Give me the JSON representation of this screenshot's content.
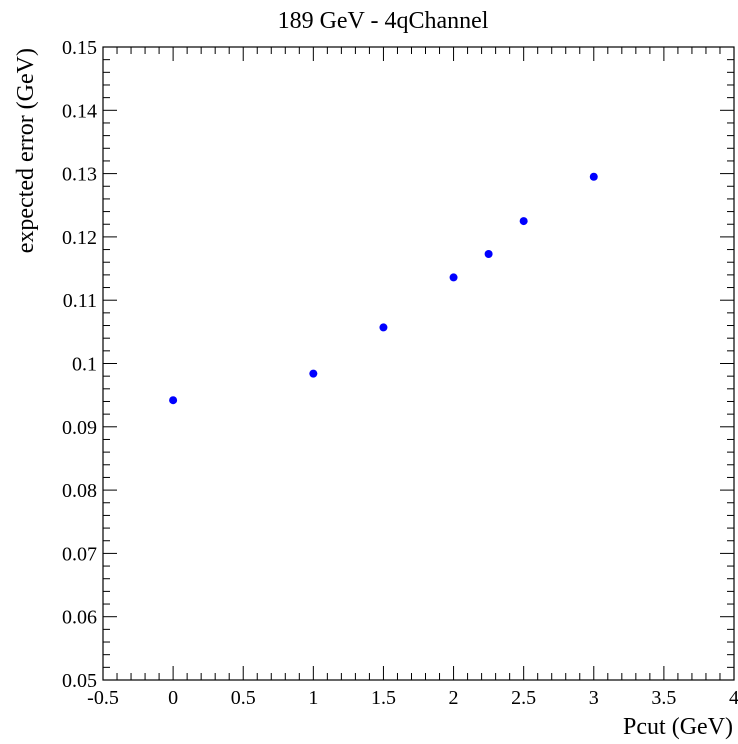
{
  "chart_data": {
    "type": "scatter",
    "title": "189 GeV - 4qChannel",
    "xlabel": "Pcut (GeV)",
    "ylabel": "expected error (GeV)",
    "xlim": [
      -0.5,
      4
    ],
    "ylim": [
      0.05,
      0.15
    ],
    "x_ticks": [
      -0.5,
      0,
      0.5,
      1,
      1.5,
      2,
      2.5,
      3,
      3.5,
      4
    ],
    "x_tick_labels": [
      "-0.5",
      "0",
      "0.5",
      "1",
      "1.5",
      "2",
      "2.5",
      "3",
      "3.5",
      "4"
    ],
    "y_ticks": [
      0.05,
      0.06,
      0.07,
      0.08,
      0.09,
      0.1,
      0.11,
      0.12,
      0.13,
      0.14,
      0.15
    ],
    "y_tick_labels": [
      "0.05",
      "0.06",
      "0.07",
      "0.08",
      "0.09",
      "0.1",
      "0.11",
      "0.12",
      "0.13",
      "0.14",
      "0.15"
    ],
    "grid": false,
    "marker_color": "#0000ff",
    "series": [
      {
        "x": [
          0,
          1,
          1.5,
          2,
          2.25,
          2.5,
          3
        ],
        "y": [
          0.0942,
          0.0984,
          0.1057,
          0.1136,
          0.1173,
          0.1225,
          0.1295
        ]
      }
    ]
  }
}
